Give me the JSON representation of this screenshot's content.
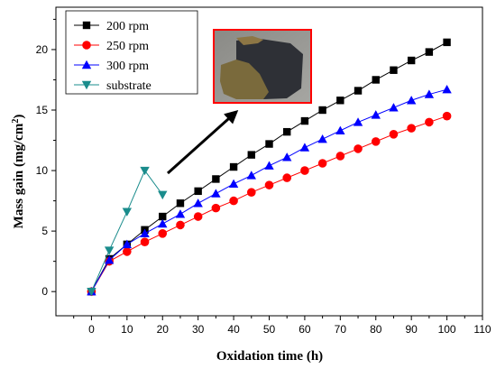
{
  "chart_data": {
    "type": "line",
    "title": "",
    "xlabel": "Oxidation time (h)",
    "ylabel": "Mass gain (mg/cm",
    "ylabel_sup": "2",
    "ylabel_end": ")",
    "xlim": [
      -10,
      110
    ],
    "ylim": [
      -2,
      23.5
    ],
    "x_ticks": [
      0,
      10,
      20,
      30,
      40,
      50,
      60,
      70,
      80,
      90,
      100,
      110
    ],
    "y_ticks": [
      0,
      5,
      10,
      15,
      20
    ],
    "grid": false,
    "legend_position": "top-left",
    "series": [
      {
        "name": "200 rpm",
        "color": "#000000",
        "marker": "square",
        "x": [
          0,
          5,
          10,
          15,
          20,
          25,
          30,
          35,
          40,
          45,
          50,
          55,
          60,
          65,
          70,
          75,
          80,
          85,
          90,
          95,
          100
        ],
        "y": [
          0,
          2.7,
          3.9,
          5.1,
          6.2,
          7.3,
          8.3,
          9.3,
          10.3,
          11.3,
          12.2,
          13.2,
          14.1,
          15.0,
          15.8,
          16.6,
          17.5,
          18.3,
          19.1,
          19.8,
          20.6
        ]
      },
      {
        "name": "250 rpm",
        "color": "#ff0000",
        "marker": "circle",
        "x": [
          0,
          5,
          10,
          15,
          20,
          25,
          30,
          35,
          40,
          45,
          50,
          55,
          60,
          65,
          70,
          75,
          80,
          85,
          90,
          95,
          100
        ],
        "y": [
          0,
          2.5,
          3.3,
          4.1,
          4.8,
          5.5,
          6.2,
          6.9,
          7.5,
          8.2,
          8.8,
          9.4,
          10.0,
          10.6,
          11.2,
          11.8,
          12.4,
          13.0,
          13.5,
          14.0,
          14.5
        ]
      },
      {
        "name": "300 rpm",
        "color": "#0000ff",
        "marker": "triangle-up",
        "x": [
          0,
          5,
          10,
          15,
          20,
          25,
          30,
          35,
          40,
          45,
          50,
          55,
          60,
          65,
          70,
          75,
          80,
          85,
          90,
          95,
          100
        ],
        "y": [
          0,
          2.6,
          3.9,
          4.8,
          5.6,
          6.4,
          7.3,
          8.1,
          8.9,
          9.6,
          10.4,
          11.1,
          11.9,
          12.6,
          13.3,
          14.0,
          14.6,
          15.2,
          15.8,
          16.3,
          16.7
        ]
      },
      {
        "name": "substrate",
        "color": "#1a8c8c",
        "marker": "triangle-down",
        "x": [
          0,
          5,
          10,
          15,
          20
        ],
        "y": [
          0,
          3.4,
          6.6,
          10.0,
          8.0
        ]
      }
    ]
  },
  "inset": {
    "border_color": "#ff0000",
    "arrow_color": "#000000"
  }
}
